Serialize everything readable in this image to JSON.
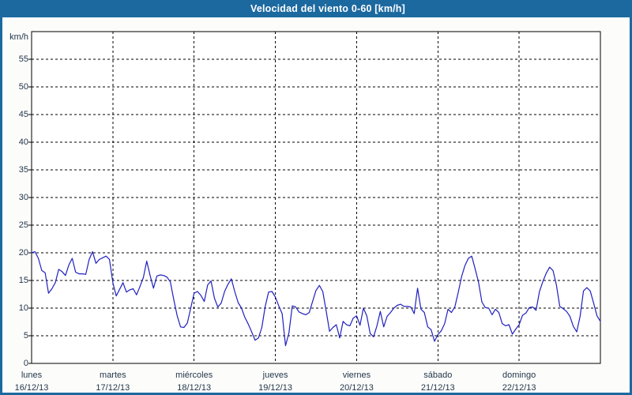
{
  "window": {
    "title": "Velocidad del viento 0-60 [km/h]"
  },
  "colors": {
    "frame_and_titlebar": "#1c69a0",
    "panel_background": "#fcfdfb",
    "plot_background": "#ffffff",
    "plot_border": "#000000",
    "gridline": "#000000",
    "series_line": "#2020c0",
    "axis_text": "#24364a",
    "title_text": "#ffffff"
  },
  "chart_data": {
    "type": "line",
    "title": "Velocidad del viento 0-60 [km/h]",
    "unit_label": "km/h",
    "ylabel": "km/h",
    "xlabel": "",
    "ylim": [
      0,
      60
    ],
    "y_ticks": [
      0,
      5,
      10,
      15,
      20,
      25,
      30,
      35,
      40,
      45,
      50,
      55
    ],
    "grid": "dashed-black",
    "legend_position": "none",
    "x_days": [
      {
        "name": "lunes",
        "date": "16/12/13"
      },
      {
        "name": "martes",
        "date": "17/12/13"
      },
      {
        "name": "miércoles",
        "date": "18/12/13"
      },
      {
        "name": "jueves",
        "date": "19/12/13"
      },
      {
        "name": "viernes",
        "date": "20/12/13"
      },
      {
        "name": "sábado",
        "date": "21/12/13"
      },
      {
        "name": "domingo",
        "date": "22/12/13"
      }
    ],
    "points_per_day": 24,
    "series": [
      {
        "name": "velocidad-del-viento",
        "unit": "km/h",
        "color": "#2020c0",
        "values": [
          20.0,
          20.2,
          19.0,
          16.8,
          16.4,
          12.7,
          13.5,
          14.6,
          17.0,
          16.6,
          15.9,
          17.8,
          19.0,
          16.5,
          16.2,
          16.2,
          16.1,
          18.8,
          20.2,
          18.1,
          18.8,
          19.1,
          19.4,
          18.8,
          14.6,
          12.2,
          13.4,
          14.6,
          12.9,
          13.3,
          13.5,
          12.4,
          13.9,
          15.5,
          18.5,
          15.9,
          13.6,
          15.8,
          16.0,
          15.9,
          15.6,
          14.7,
          11.5,
          8.6,
          6.6,
          6.5,
          7.3,
          10.0,
          12.7,
          13.0,
          12.3,
          11.2,
          14.2,
          14.9,
          11.8,
          10.2,
          10.9,
          13.0,
          14.3,
          15.3,
          13.0,
          11.0,
          10.0,
          8.3,
          7.1,
          5.7,
          4.2,
          4.6,
          6.5,
          10.3,
          12.9,
          13.0,
          12.0,
          10.4,
          9.0,
          3.2,
          5.5,
          10.4,
          10.2,
          9.3,
          9.0,
          8.8,
          9.2,
          11.2,
          13.2,
          14.1,
          13.0,
          9.5,
          5.8,
          6.5,
          7.0,
          4.6,
          7.6,
          7.0,
          6.8,
          8.2,
          8.6,
          6.9,
          10.0,
          8.6,
          5.4,
          4.8,
          6.8,
          9.4,
          6.6,
          8.5,
          9.2,
          10.0,
          10.5,
          10.7,
          10.3,
          10.3,
          10.2,
          9.0,
          13.6,
          9.8,
          9.2,
          6.6,
          6.1,
          4.0,
          5.2,
          5.9,
          7.2,
          9.8,
          9.2,
          10.2,
          12.8,
          15.7,
          17.7,
          19.0,
          19.4,
          17.1,
          14.7,
          11.1,
          10.1,
          10.0,
          8.8,
          9.8,
          9.2,
          7.2,
          6.8,
          7.0,
          5.3,
          6.2,
          7.0,
          8.7,
          9.1,
          10.1,
          10.2,
          9.6,
          13.0,
          14.8,
          16.3,
          17.4,
          16.8,
          14.2,
          10.3,
          9.9,
          9.4,
          8.5,
          6.7,
          5.7,
          8.5,
          13.1,
          13.7,
          13.1,
          10.9,
          8.6,
          7.6
        ]
      }
    ]
  }
}
